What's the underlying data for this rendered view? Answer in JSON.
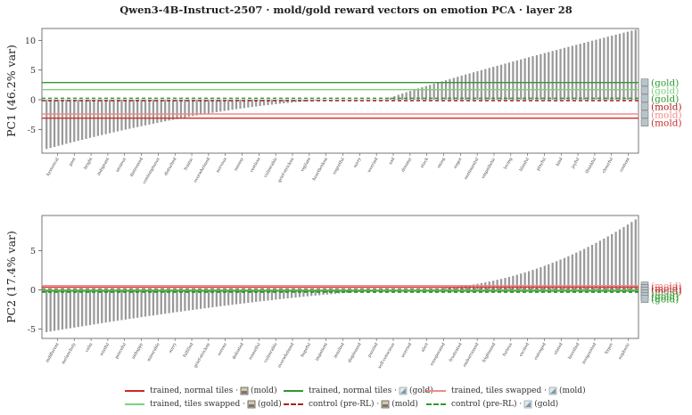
{
  "title": "Qwen3-4B-Instruct-2507 · mold/gold reward vectors on emotion PCA · layer 28",
  "colors": {
    "bars": "#999999",
    "trained_normal_mold": "#cc2b2b",
    "trained_normal_gold": "#2e9a2e",
    "swapped_mold": "#f08a8a",
    "swapped_gold": "#7cd17c",
    "control_mold": "#a82020",
    "control_gold": "#2e9a2e",
    "axis": "#555555",
    "grid_zero": "#aaaaaa"
  },
  "legend": {
    "trained_normal_mold": {
      "pre": "trained, normal tiles ·",
      "post": "(mold)",
      "icon": "scroll-tile-icon"
    },
    "trained_normal_gold": {
      "pre": "trained, normal tiles ·",
      "post": "(gold)",
      "icon": "triangle-tile-icon"
    },
    "swapped_mold": {
      "pre": "trained, tiles swapped ·",
      "post": "(mold)",
      "icon": "triangle-tile-icon"
    },
    "swapped_gold": {
      "pre": "trained, tiles swapped ·",
      "post": "(gold)",
      "icon": "scroll-tile-icon"
    },
    "control_mold": {
      "pre": "control (pre-RL) ·",
      "post": "(mold)",
      "icon": "scroll-tile-icon"
    },
    "control_gold": {
      "pre": "control (pre-RL) ·",
      "post": "(gold)",
      "icon": "triangle-tile-icon"
    }
  },
  "chart_data": [
    {
      "type": "bar",
      "ylabel": "PC1 (46.2% var)",
      "ylim": [
        -9,
        12
      ],
      "yticks": [
        -5,
        0,
        5,
        10
      ],
      "n_bars": 150,
      "value_range": [
        -8.3,
        11.8
      ],
      "shown_categories": [
        "hysterical",
        "past",
        "bright",
        "indignant",
        "anxious",
        "distressed",
        "contemptuous",
        "disturbed",
        "frantic",
        "overwhelmed",
        "nervous",
        "uneasy",
        "restless",
        "vulnerable",
        "grief-stricken",
        "vigilant",
        "heartbroken",
        "regretful",
        "sorry",
        "worried",
        "sad",
        "dreamy",
        "stuck",
        "smug",
        "eager",
        "sentimental",
        "empathetic",
        "loving",
        "blissful",
        "playful",
        "kind",
        "joyful",
        "thankful",
        "cheerful",
        "content"
      ],
      "reference_lines": [
        {
          "name": "trained_normal_gold",
          "value": 2.9,
          "label": "(gold)"
        },
        {
          "name": "swapped_gold",
          "value": 1.7,
          "label": "(gold)"
        },
        {
          "name": "control_gold",
          "value": 0.25,
          "label": "(gold)"
        },
        {
          "name": "control_mold",
          "value": -0.15,
          "label": "(mold)"
        },
        {
          "name": "swapped_mold",
          "value": -2.4,
          "label": "(mold)"
        },
        {
          "name": "trained_normal_mold",
          "value": -3.1,
          "label": "(mold)"
        }
      ]
    },
    {
      "type": "bar",
      "ylabel": "PC2 (17.4% var)",
      "ylim": [
        -6.2,
        9.5
      ],
      "yticks": [
        -5,
        0,
        5
      ],
      "n_bars": 150,
      "value_range": [
        -5.4,
        9.0
      ],
      "shown_categories": [
        "indifferent",
        "melancholy",
        "calm",
        "wistful",
        "peaceful",
        "unhappy",
        "miserable",
        "sorry",
        "fulfilled",
        "grief-stricken",
        "serene",
        "defeated",
        "resentful",
        "vulnerable",
        "overwhelmed",
        "hopeful",
        "impatient",
        "insulted",
        "displeased",
        "puzzled",
        "self-conscious",
        "worried",
        "alert",
        "exasperated",
        "frustrated",
        "embarrassed",
        "frightened",
        "furious",
        "excited",
        "outraged",
        "elated",
        "horrified",
        "invigorated",
        "hyper",
        "euphoric"
      ],
      "reference_lines": [
        {
          "name": "swapped_mold",
          "value": 0.55,
          "label": "(mold)"
        },
        {
          "name": "trained_normal_mold",
          "value": 0.35,
          "label": "(mold)"
        },
        {
          "name": "control_mold",
          "value": 0.1,
          "label": "(mold)"
        },
        {
          "name": "swapped_gold",
          "value": 0.0,
          "label": "(gold)"
        },
        {
          "name": "trained_normal_gold",
          "value": -0.15,
          "label": "(gold)"
        },
        {
          "name": "control_gold",
          "value": -0.3,
          "label": "(gold)"
        }
      ]
    }
  ]
}
